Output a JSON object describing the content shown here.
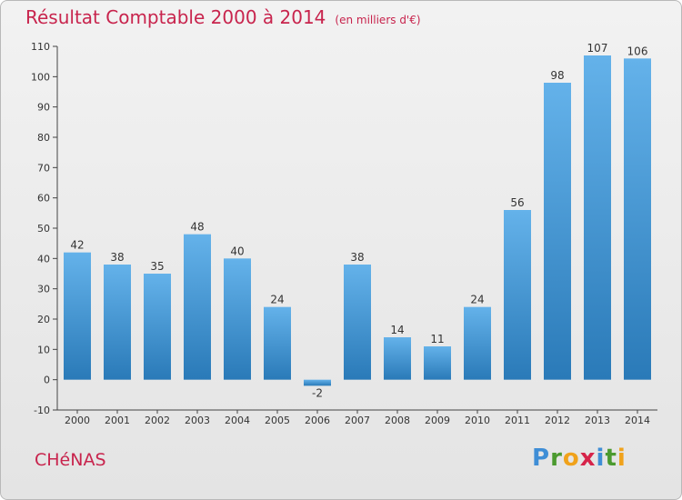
{
  "title": "Résultat Comptable 2000 à 2014",
  "unit": "(en milliers d'€)",
  "place": "CHéNAS",
  "logo": {
    "text": "Proxiti",
    "letters": [
      {
        "ch": "P",
        "color": "#3f8ed6"
      },
      {
        "ch": "r",
        "color": "#4b9a2f"
      },
      {
        "ch": "o",
        "color": "#f0a21b"
      },
      {
        "ch": "x",
        "color": "#d6244a"
      },
      {
        "ch": "i",
        "color": "#3f8ed6"
      },
      {
        "ch": "t",
        "color": "#4b9a2f"
      },
      {
        "ch": "i",
        "color": "#f0a21b"
      }
    ]
  },
  "colors": {
    "bar_light": "#64b2ea",
    "bar_dark": "#2a7ab8",
    "accent": "#c8244d"
  },
  "chart_data": {
    "type": "bar",
    "title": "Résultat Comptable 2000 à 2014",
    "categories": [
      "2000",
      "2001",
      "2002",
      "2003",
      "2004",
      "2005",
      "2006",
      "2007",
      "2008",
      "2009",
      "2010",
      "2011",
      "2012",
      "2013",
      "2014"
    ],
    "values": [
      42,
      38,
      35,
      48,
      40,
      24,
      -2,
      38,
      14,
      11,
      24,
      56,
      98,
      107,
      106
    ],
    "ylim": [
      -10,
      110
    ],
    "yticks": [
      -10,
      0,
      10,
      20,
      30,
      40,
      50,
      60,
      70,
      80,
      90,
      100,
      110
    ],
    "grid": false
  }
}
